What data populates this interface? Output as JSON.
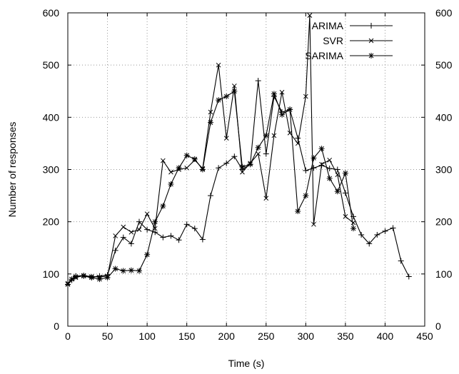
{
  "chart_data": {
    "type": "line",
    "title": "",
    "xlabel": "Time (s)",
    "ylabel": "Number of responses",
    "xlim": [
      0,
      450
    ],
    "ylim": [
      0,
      600
    ],
    "xticks": [
      0,
      50,
      100,
      150,
      200,
      250,
      300,
      350,
      400,
      450
    ],
    "yticks": [
      0,
      100,
      200,
      300,
      400,
      500,
      600
    ],
    "grid": true,
    "legend_position": "top-right",
    "right_axis_ticks": true,
    "series": [
      {
        "name": "ARIMA",
        "marker": "plus",
        "color": "#000000",
        "x": [
          0,
          5,
          10,
          20,
          30,
          40,
          50,
          60,
          70,
          80,
          90,
          100,
          110,
          120,
          130,
          140,
          150,
          160,
          170,
          180,
          190,
          200,
          210,
          220,
          230,
          240,
          250,
          260,
          270,
          280,
          290,
          300,
          310,
          320,
          330,
          340,
          350,
          360,
          370,
          380,
          390,
          400,
          410,
          420,
          430
        ],
        "y": [
          80,
          88,
          96,
          97,
          94,
          96,
          98,
          145,
          170,
          158,
          200,
          185,
          180,
          170,
          173,
          165,
          195,
          187,
          166,
          250,
          303,
          312,
          325,
          300,
          310,
          470,
          330,
          440,
          410,
          415,
          360,
          298,
          303,
          308,
          302,
          300,
          255,
          210,
          175,
          158,
          175,
          182,
          188,
          125,
          95
        ]
      },
      {
        "name": "SVR",
        "marker": "x",
        "color": "#000000",
        "x": [
          0,
          5,
          10,
          20,
          30,
          40,
          50,
          60,
          70,
          80,
          90,
          100,
          110,
          120,
          130,
          140,
          150,
          160,
          170,
          180,
          190,
          200,
          210,
          220,
          230,
          240,
          250,
          260,
          270,
          280,
          290,
          300,
          305,
          310,
          320,
          330,
          340,
          350,
          360
        ],
        "y": [
          82,
          90,
          93,
          97,
          95,
          94,
          96,
          173,
          190,
          180,
          185,
          215,
          187,
          317,
          295,
          300,
          303,
          318,
          302,
          410,
          500,
          360,
          460,
          295,
          312,
          330,
          245,
          365,
          448,
          370,
          350,
          440,
          595,
          195,
          310,
          318,
          290,
          210,
          198
        ]
      },
      {
        "name": "SARIMA",
        "marker": "star",
        "color": "#000000",
        "x": [
          0,
          5,
          10,
          20,
          30,
          40,
          50,
          60,
          70,
          80,
          90,
          100,
          110,
          120,
          130,
          140,
          150,
          160,
          170,
          180,
          190,
          200,
          210,
          220,
          230,
          240,
          250,
          260,
          270,
          280,
          290,
          300,
          310,
          320,
          330,
          340,
          350,
          360
        ],
        "y": [
          80,
          90,
          95,
          96,
          93,
          90,
          93,
          110,
          106,
          107,
          106,
          137,
          200,
          230,
          272,
          303,
          327,
          320,
          300,
          390,
          433,
          440,
          450,
          305,
          310,
          342,
          365,
          445,
          405,
          415,
          220,
          250,
          322,
          340,
          283,
          258,
          293,
          187
        ]
      }
    ]
  }
}
